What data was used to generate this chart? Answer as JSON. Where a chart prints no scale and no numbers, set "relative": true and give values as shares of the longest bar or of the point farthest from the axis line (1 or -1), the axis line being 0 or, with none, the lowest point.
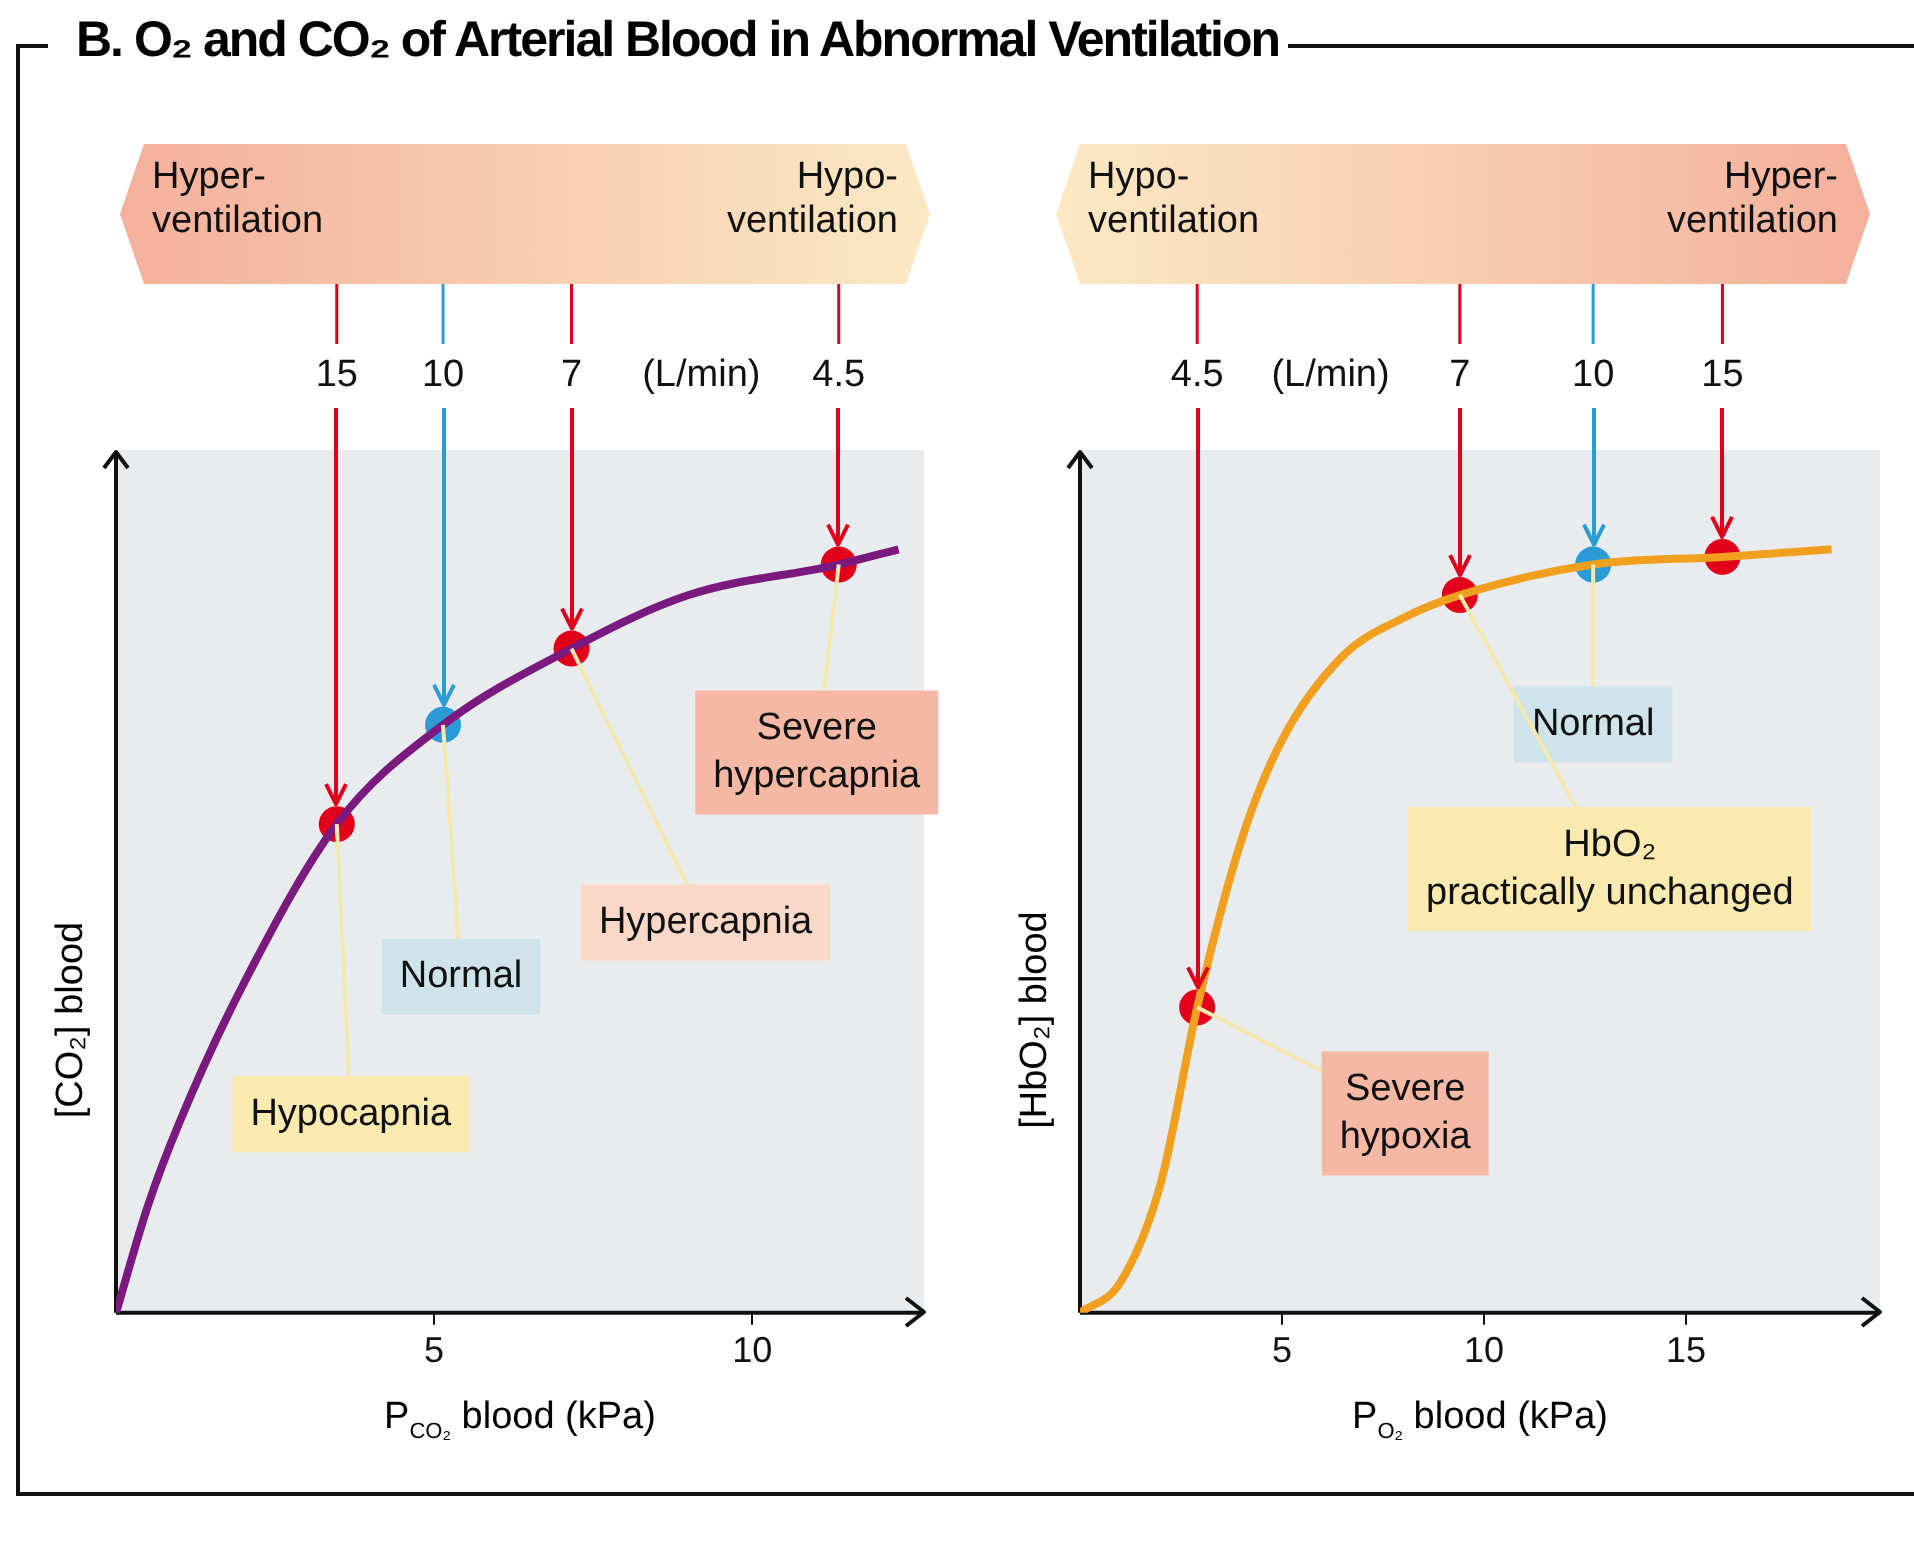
{
  "chart_data": [
    {
      "type": "line",
      "title": "B. O₂ and CO₂ of Arterial Blood in Abnormal Ventilation",
      "relative": true,
      "xlabel": "P$_{CO₂}$ blood (kPa)",
      "ylabel": "[CO₂] blood",
      "xlim": [
        0,
        12.7
      ],
      "xticks": [
        5,
        10
      ],
      "grid": false,
      "legend": false,
      "series": [
        {
          "type": "line",
          "color": "#7b1a7e",
          "x": [
            0,
            0.5,
            1,
            2,
            3.47,
            5.14,
            7.16,
            9,
            11.36,
            12.3
          ],
          "values": [
            0,
            0.14,
            0.25,
            0.43,
            0.64,
            0.77,
            0.87,
            0.94,
            0.98,
            1
          ]
        },
        {
          "type": "scatter",
          "x": [
            3.47,
            5.14,
            7.16,
            11.36
          ],
          "values": [
            0.64,
            0.77,
            0.87,
            0.98
          ],
          "colors": [
            "#e3001b",
            "#2b9bd6",
            "#e3001b",
            "#e3001b"
          ]
        }
      ],
      "annotations": [
        "Hyper-\nventilation",
        "Hypo-\nventilation",
        "(L/min)",
        {
          "text": "15",
          "x": 3.47
        },
        {
          "text": "10",
          "x": 5.14
        },
        {
          "text": "7",
          "x": 7.16
        },
        {
          "text": "4.5",
          "x": 11.36
        },
        {
          "text": "Hypocapnia",
          "x": 3.47,
          "y": 0.64
        },
        {
          "text": "Normal",
          "x": 5.14,
          "y": 0.77
        },
        {
          "text": "Hypercapnia",
          "x": 7.16,
          "y": 0.87
        },
        {
          "text": "Severe\nhypercapnia",
          "x": 11.36,
          "y": 0.98
        }
      ]
    },
    {
      "type": "line",
      "relative": true,
      "xlabel": "P$_{O₂}$ blood (kPa)",
      "ylabel": "[HbO₂] blood",
      "xlim": [
        0,
        19.8
      ],
      "xticks": [
        5,
        10,
        15
      ],
      "grid": false,
      "legend": false,
      "series": [
        {
          "type": "line",
          "color": "#f0a01e",
          "x": [
            0,
            1,
            2,
            2.9,
            4,
            5,
            6.5,
            8,
            9.4,
            12.7,
            15.9,
            18.6
          ],
          "values": [
            0,
            0.04,
            0.17,
            0.4,
            0.62,
            0.75,
            0.86,
            0.91,
            0.94,
            0.98,
            0.99,
            1
          ]
        },
        {
          "type": "scatter",
          "x": [
            2.9,
            9.4,
            12.7,
            15.9
          ],
          "values": [
            0.4,
            0.94,
            0.98,
            0.99
          ],
          "colors": [
            "#e3001b",
            "#e3001b",
            "#2b9bd6",
            "#e3001b"
          ]
        }
      ],
      "annotations": [
        "Hypo-\nventilation",
        "Hyper-\nventilation",
        "(L/min)",
        {
          "text": "4.5",
          "x": 2.9
        },
        {
          "text": "7",
          "x": 9.4
        },
        {
          "text": "10",
          "x": 12.7
        },
        {
          "text": "15",
          "x": 15.9
        },
        {
          "text": "Severe\nhypoxia",
          "x": 2.9,
          "y": 0.4
        },
        {
          "text": "Normal",
          "x": 12.7,
          "y": 0.98
        },
        {
          "text": "HbO₂\npractically unchanged",
          "x": 9.4,
          "y": 0.94
        }
      ]
    }
  ]
}
